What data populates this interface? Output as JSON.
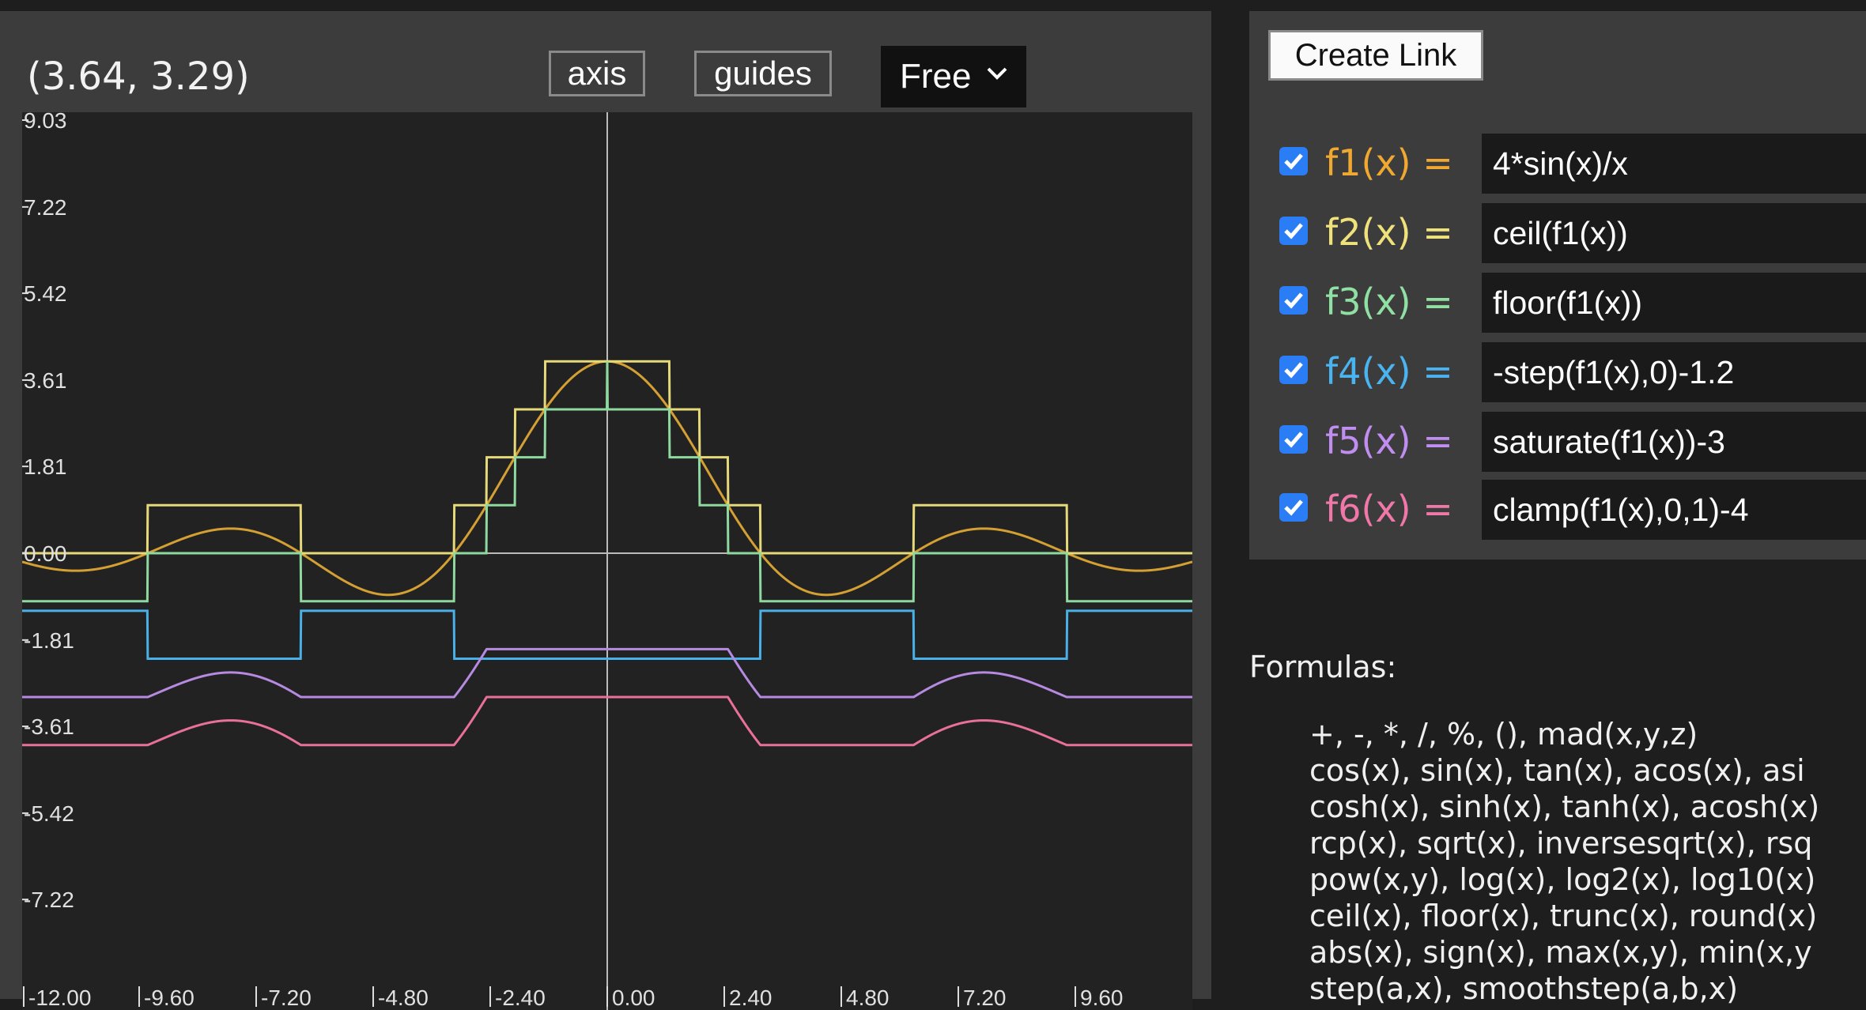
{
  "toolbar": {
    "coordinate_readout": "(3.64, 3.29)",
    "axis_label": "axis",
    "guides_label": "guides",
    "mode_select_value": "Free"
  },
  "chart_data": {
    "type": "line",
    "x_range": [
      -12.0,
      12.0
    ],
    "y_range": [
      -9.03,
      9.03
    ],
    "x_ticks": [
      "-12.00",
      "-9.60",
      "-7.20",
      "-4.80",
      "-2.40",
      "0.00",
      "2.40",
      "4.80",
      "7.20",
      "9.60"
    ],
    "y_ticks": [
      "9.03",
      "7.22",
      "5.42",
      "3.61",
      "1.81",
      "0.00",
      "-1.81",
      "-3.61",
      "-5.42",
      "-7.22"
    ],
    "grid": false,
    "axes_visible": true,
    "series": [
      {
        "name": "f1(x)",
        "formula": "4*sin(x)/x",
        "color": "#d4a033"
      },
      {
        "name": "f2(x)",
        "formula": "ceil(f1(x))",
        "color": "#e6d97a"
      },
      {
        "name": "f3(x)",
        "formula": "floor(f1(x))",
        "color": "#8fd9a0"
      },
      {
        "name": "f4(x)",
        "formula": "-step(f1(x),0)-1.2",
        "color": "#4ab0e8"
      },
      {
        "name": "f5(x)",
        "formula": "saturate(f1(x))-3",
        "color": "#b58ae0"
      },
      {
        "name": "f6(x)",
        "formula": "clamp(f1(x),0,1)-4",
        "color": "#e8709a"
      }
    ]
  },
  "link": {
    "create_link_label": "Create Link"
  },
  "functions": [
    {
      "label": "f1(x) =",
      "expression": "4*sin(x)/x",
      "checked": true,
      "color": "#f0a830"
    },
    {
      "label": "f2(x) =",
      "expression": "ceil(f1(x))",
      "checked": true,
      "color": "#f0e27a"
    },
    {
      "label": "f3(x) =",
      "expression": "floor(f1(x))",
      "checked": true,
      "color": "#8fe0a2"
    },
    {
      "label": "f4(x) =",
      "expression": "-step(f1(x),0)-1.2",
      "checked": true,
      "color": "#4ab4f0"
    },
    {
      "label": "f5(x) =",
      "expression": "saturate(f1(x))-3",
      "checked": true,
      "color": "#c08ef0"
    },
    {
      "label": "f6(x) =",
      "expression": "clamp(f1(x),0,1)-4",
      "checked": true,
      "color": "#f078a8"
    }
  ],
  "formulas": {
    "heading": "Formulas:",
    "items": [
      "+, -, *, /, %, (), mad(x,y,z)",
      "cos(x), sin(x), tan(x), acos(x), asi",
      "cosh(x), sinh(x), tanh(x), acosh(x)",
      "rcp(x), sqrt(x), inversesqrt(x), rsq",
      "pow(x,y), log(x), log2(x), log10(x)",
      "ceil(x), floor(x), trunc(x), round(x)",
      "abs(x), sign(x), max(x,y), min(x,y",
      "step(a,x), smoothstep(a,b,x)"
    ]
  }
}
